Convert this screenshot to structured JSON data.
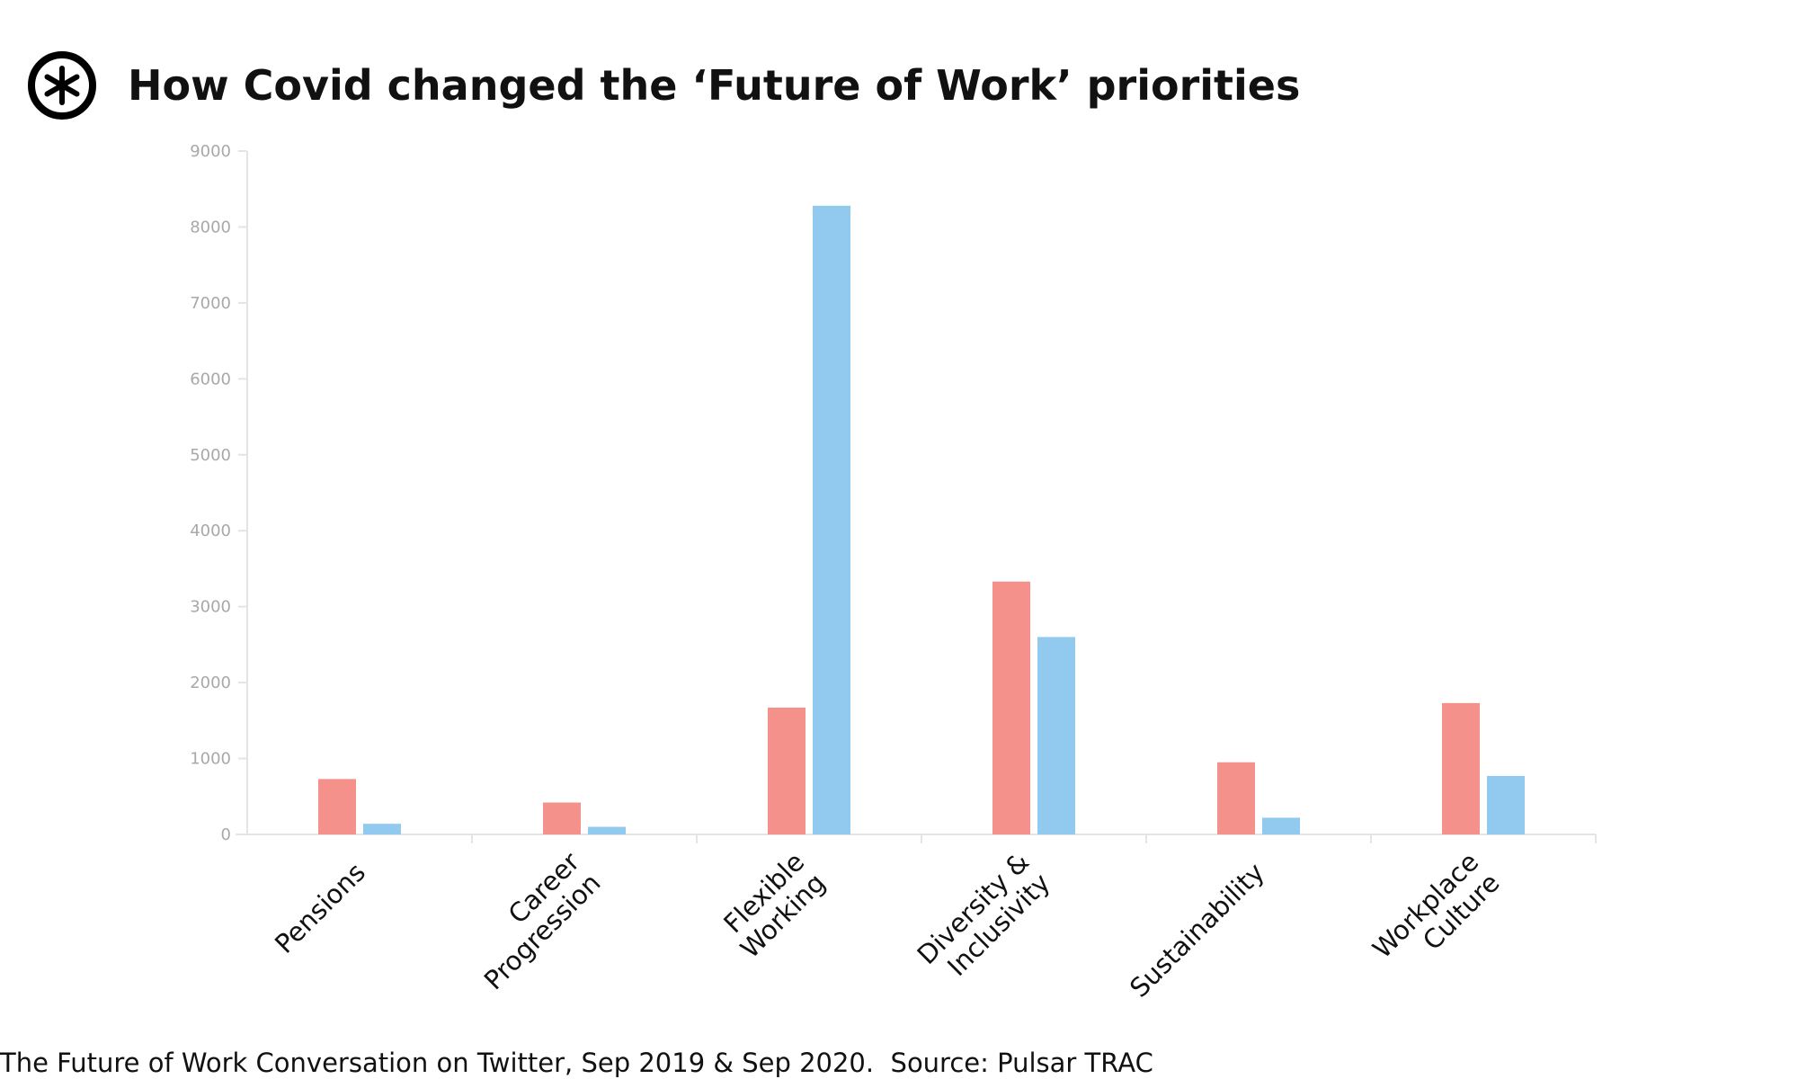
{
  "header": {
    "title": "How Covid changed the ‘Future of Work’ priorities",
    "logo_icon": "asterisk-circle-icon"
  },
  "footer": {
    "caption": "The Future of Work Conversation on Twitter, Sep 2019 & Sep 2020.  Source: Pulsar TRAC"
  },
  "chart_data": {
    "type": "bar",
    "title": "How Covid changed the ‘Future of Work’ priorities",
    "xlabel": "",
    "ylabel": "",
    "ylim": [
      0,
      9000
    ],
    "yticks": [
      0,
      1000,
      2000,
      3000,
      4000,
      5000,
      6000,
      7000,
      8000,
      9000
    ],
    "grid": false,
    "legend": "none",
    "categories": [
      [
        "Pensions"
      ],
      [
        "Career",
        "Progression"
      ],
      [
        "Flexible",
        "Working"
      ],
      [
        "Diversity &",
        "Inclusivity"
      ],
      [
        "Sustainability"
      ],
      [
        "Workplace",
        "Culture"
      ]
    ],
    "series": [
      {
        "color": "#f4918a",
        "values": [
          730,
          420,
          1670,
          3330,
          950,
          1730
        ]
      },
      {
        "color": "#92c9ee",
        "values": [
          140,
          100,
          8280,
          2600,
          220,
          770
        ]
      }
    ]
  }
}
